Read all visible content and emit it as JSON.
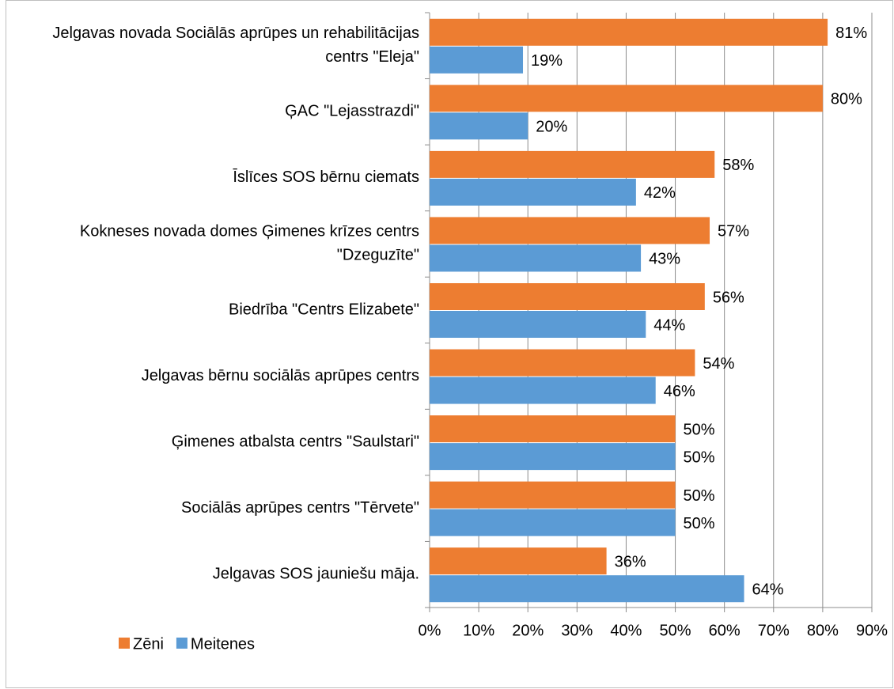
{
  "chart_data": {
    "type": "hbar",
    "categories": [
      "Jelgavas novada Sociālās aprūpes un rehabilitācijas centrs \"Eleja\"",
      "ĢAC \"Lejasstrazdi\"",
      "Īslīces SOS bērnu ciemats",
      "Kokneses novada domes Ģimenes krīzes centrs \"Dzeguzīte\"",
      "Biedrība \"Centrs Elizabete\"",
      "Jelgavas bērnu sociālās aprūpes centrs",
      "Ģimenes atbalsta centrs \"Saulstari\"",
      "Sociālās aprūpes centrs \"Tērvete\"",
      "Jelgavas SOS jauniešu māja."
    ],
    "series": [
      {
        "name": "Zēni",
        "color": "#ED7D31",
        "values": [
          81,
          80,
          58,
          57,
          56,
          54,
          50,
          50,
          36
        ],
        "value_labels": [
          "81%",
          "80%",
          "58%",
          "57%",
          "56%",
          "54%",
          "50%",
          "50%",
          "36%"
        ]
      },
      {
        "name": "Meitenes",
        "color": "#5B9BD5",
        "values": [
          19,
          20,
          42,
          43,
          44,
          46,
          50,
          50,
          64
        ],
        "value_labels": [
          "19%",
          "20%",
          "42%",
          "43%",
          "44%",
          "46%",
          "50%",
          "50%",
          "64%"
        ]
      }
    ],
    "xlim": [
      0,
      90
    ],
    "xticks": [
      {
        "value": 0,
        "label": "0%"
      },
      {
        "value": 10,
        "label": "10%"
      },
      {
        "value": 20,
        "label": "20%"
      },
      {
        "value": 30,
        "label": "30%"
      },
      {
        "value": 40,
        "label": "40%"
      },
      {
        "value": 50,
        "label": "50%"
      },
      {
        "value": 60,
        "label": "60%"
      },
      {
        "value": 70,
        "label": "70%"
      },
      {
        "value": 80,
        "label": "80%"
      },
      {
        "value": 90,
        "label": "90%"
      }
    ],
    "grid": true,
    "legend": "bottom-left"
  }
}
